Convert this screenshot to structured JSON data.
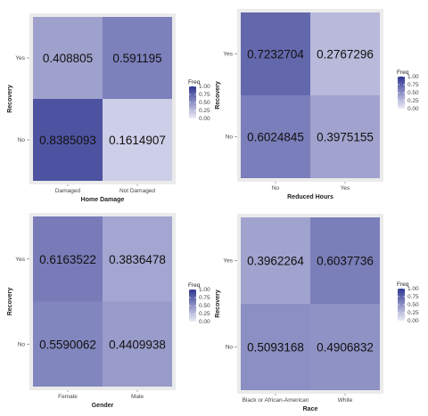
{
  "chart_data": [
    {
      "type": "heatmap",
      "x_categories": [
        "Damaged",
        "Not Damaged"
      ],
      "y_categories": [
        "No",
        "Yes"
      ],
      "xlabel": "Home Damage",
      "ylabel": "Recovery",
      "values": {
        "No": [
          0.8385093,
          0.1614907
        ],
        "Yes": [
          0.408805,
          0.591195
        ]
      },
      "cell_labels": {
        "No": [
          "0.8385093",
          "0.1614907"
        ],
        "Yes": [
          "0.408805",
          "0.591195"
        ]
      },
      "legend": {
        "title": "Freq",
        "ticks": [
          "1.00",
          "0.75",
          "0.50",
          "0.25",
          "0.00"
        ],
        "range": [
          0,
          1
        ],
        "placement": "right"
      },
      "grid": false
    },
    {
      "type": "heatmap",
      "x_categories": [
        "No",
        "Yes"
      ],
      "y_categories": [
        "No",
        "Yes"
      ],
      "xlabel": "Reduced Hours",
      "ylabel": "Recovery",
      "values": {
        "No": [
          0.6024845,
          0.3975155
        ],
        "Yes": [
          0.7232704,
          0.2767296
        ]
      },
      "cell_labels": {
        "No": [
          "0.6024845",
          "0.3975155"
        ],
        "Yes": [
          "0.7232704",
          "0.2767296"
        ]
      },
      "legend": {
        "title": "Freq",
        "ticks": [
          "1.00",
          "0.75",
          "0.50",
          "0.25",
          "0.00"
        ],
        "range": [
          0,
          1
        ],
        "placement": "right"
      },
      "grid": false
    },
    {
      "type": "heatmap",
      "x_categories": [
        "Female",
        "Male"
      ],
      "y_categories": [
        "No",
        "Yes"
      ],
      "xlabel": "Gender",
      "ylabel": "Recovery",
      "values": {
        "No": [
          0.5590062,
          0.4409938
        ],
        "Yes": [
          0.6163522,
          0.3836478
        ]
      },
      "cell_labels": {
        "No": [
          "0.5590062",
          "0.4409938"
        ],
        "Yes": [
          "0.6163522",
          "0.3836478"
        ]
      },
      "legend": {
        "title": "Freq",
        "ticks": [
          "1.00",
          "0.75",
          "0.50",
          "0.25",
          "0.00"
        ],
        "range": [
          0,
          1
        ],
        "placement": "right"
      },
      "grid": false
    },
    {
      "type": "heatmap",
      "x_categories": [
        "Black or African-American",
        "White"
      ],
      "y_categories": [
        "No",
        "Yes"
      ],
      "xlabel": "Race",
      "ylabel": "Recovery",
      "values": {
        "No": [
          0.5093168,
          0.4906832
        ],
        "Yes": [
          0.3962264,
          0.6037736
        ]
      },
      "cell_labels": {
        "No": [
          "0.5093168",
          "0.4906832"
        ],
        "Yes": [
          "0.3962264",
          "0.6037736"
        ]
      },
      "legend": {
        "title": "Freq",
        "ticks": [
          "1.00",
          "0.75",
          "0.50",
          "0.25",
          "0.00"
        ],
        "range": [
          0,
          1
        ],
        "placement": "right"
      },
      "grid": false
    }
  ],
  "colors": {
    "low": "#ececf7",
    "high": "#2f3591",
    "panel_background": "#ebebeb"
  }
}
